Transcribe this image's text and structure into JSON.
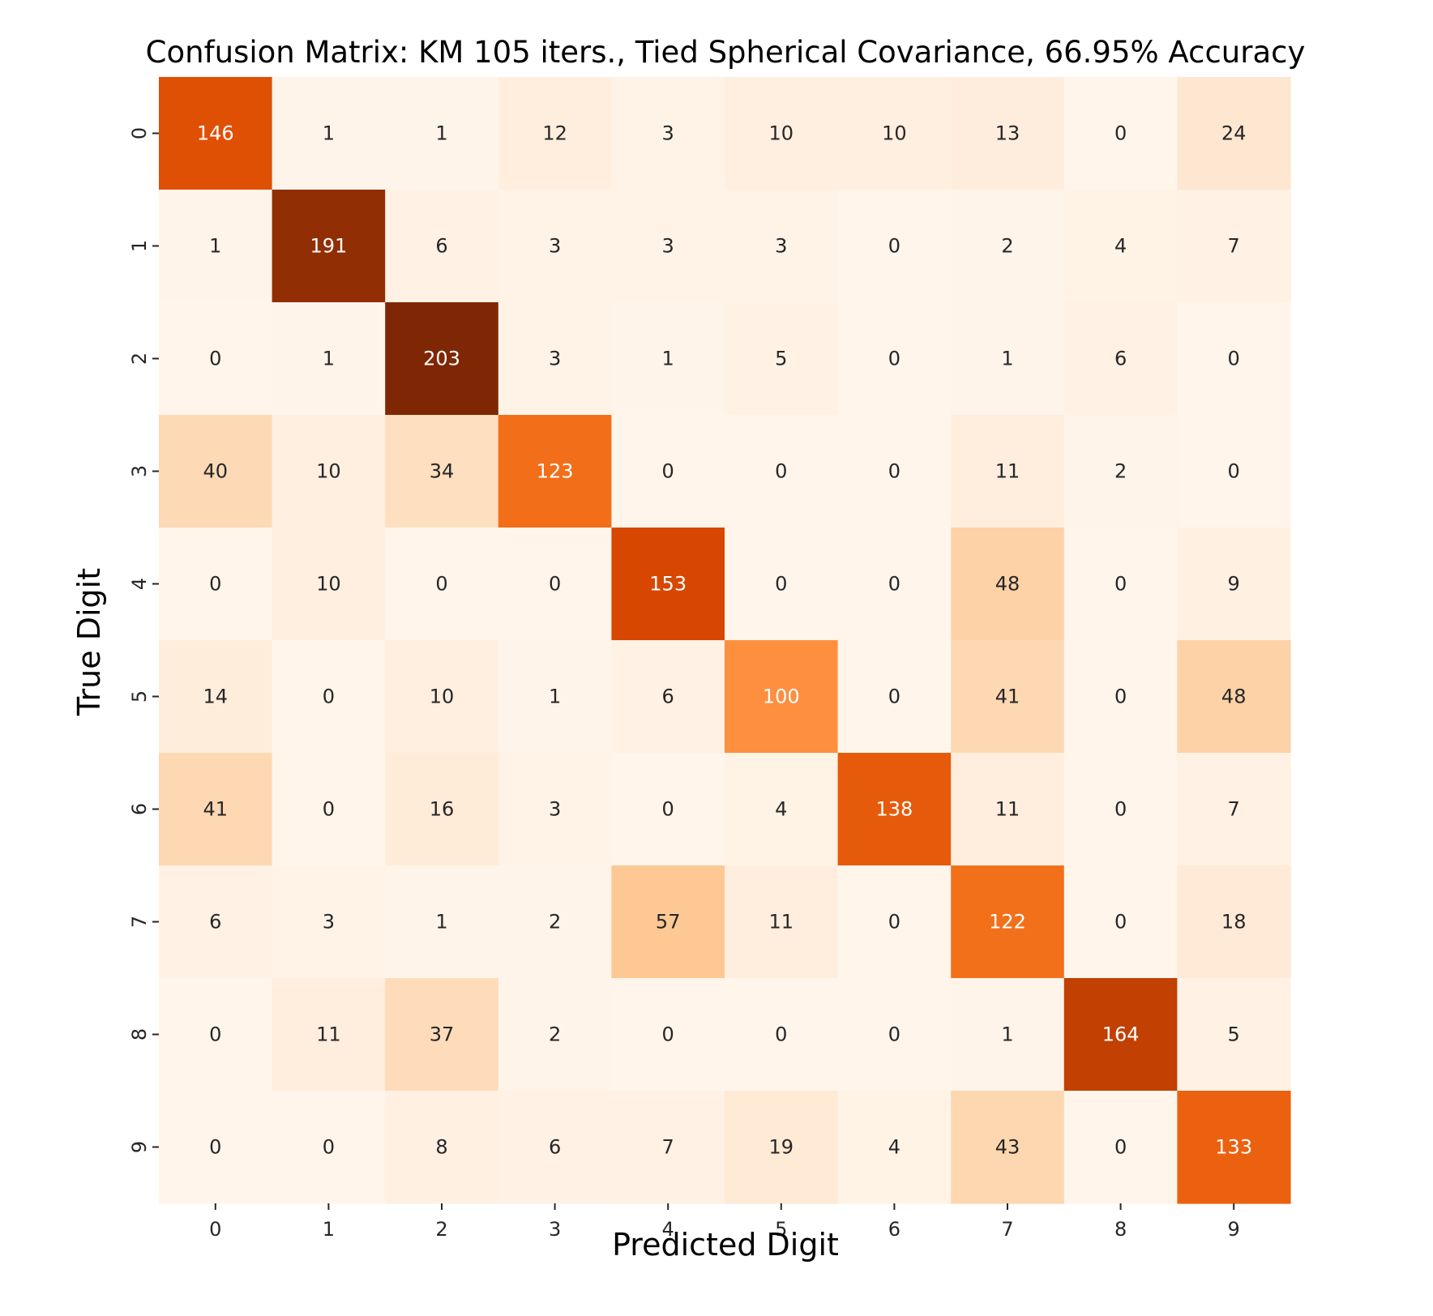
{
  "chart_data": {
    "type": "heatmap",
    "title": "Confusion Matrix: KM 105 iters., Tied Spherical Covariance, 66.95% Accuracy",
    "xlabel": "Predicted Digit",
    "ylabel": "True Digit",
    "x_categories": [
      "0",
      "1",
      "2",
      "3",
      "4",
      "5",
      "6",
      "7",
      "8",
      "9"
    ],
    "y_categories": [
      "0",
      "1",
      "2",
      "3",
      "4",
      "5",
      "6",
      "7",
      "8",
      "9"
    ],
    "values": [
      [
        146,
        1,
        1,
        12,
        3,
        10,
        10,
        13,
        0,
        24
      ],
      [
        1,
        191,
        6,
        3,
        3,
        3,
        0,
        2,
        4,
        7
      ],
      [
        0,
        1,
        203,
        3,
        1,
        5,
        0,
        1,
        6,
        0
      ],
      [
        40,
        10,
        34,
        123,
        0,
        0,
        0,
        11,
        2,
        0
      ],
      [
        0,
        10,
        0,
        0,
        153,
        0,
        0,
        48,
        0,
        9
      ],
      [
        14,
        0,
        10,
        1,
        6,
        100,
        0,
        41,
        0,
        48
      ],
      [
        41,
        0,
        16,
        3,
        0,
        4,
        138,
        11,
        0,
        7
      ],
      [
        6,
        3,
        1,
        2,
        57,
        11,
        0,
        122,
        0,
        18
      ],
      [
        0,
        11,
        37,
        2,
        0,
        0,
        0,
        1,
        164,
        5
      ],
      [
        0,
        0,
        8,
        6,
        7,
        19,
        4,
        43,
        0,
        133
      ]
    ],
    "colormap": "Oranges",
    "color_range": [
      0,
      203
    ],
    "colorbar": false,
    "annotations": true,
    "grid": false,
    "colors": {
      "low": "#fff5eb",
      "high": "#7f2704",
      "text_dark": "#262626",
      "text_light": "#ffffff"
    }
  }
}
